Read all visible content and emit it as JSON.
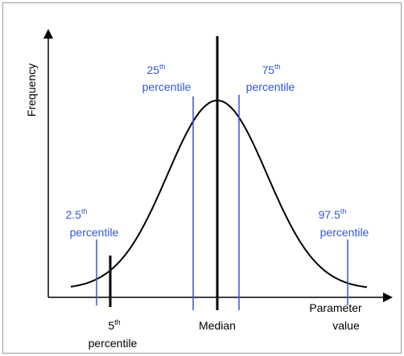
{
  "axes": {
    "y_label": "Frequency",
    "x_label": {
      "line1": "Parameter",
      "line2": "value"
    }
  },
  "markers": [
    {
      "number": "2.5",
      "suffix": "th",
      "word": "percentile"
    },
    {
      "number": "25",
      "suffix": "th",
      "word": "percentile"
    },
    {
      "number": "75",
      "suffix": "th",
      "word": "percentile"
    },
    {
      "number": "97.5",
      "suffix": "th",
      "word": "percentile"
    },
    {
      "number": "5",
      "suffix": "th",
      "word": "percentile"
    }
  ],
  "median": "Median"
}
